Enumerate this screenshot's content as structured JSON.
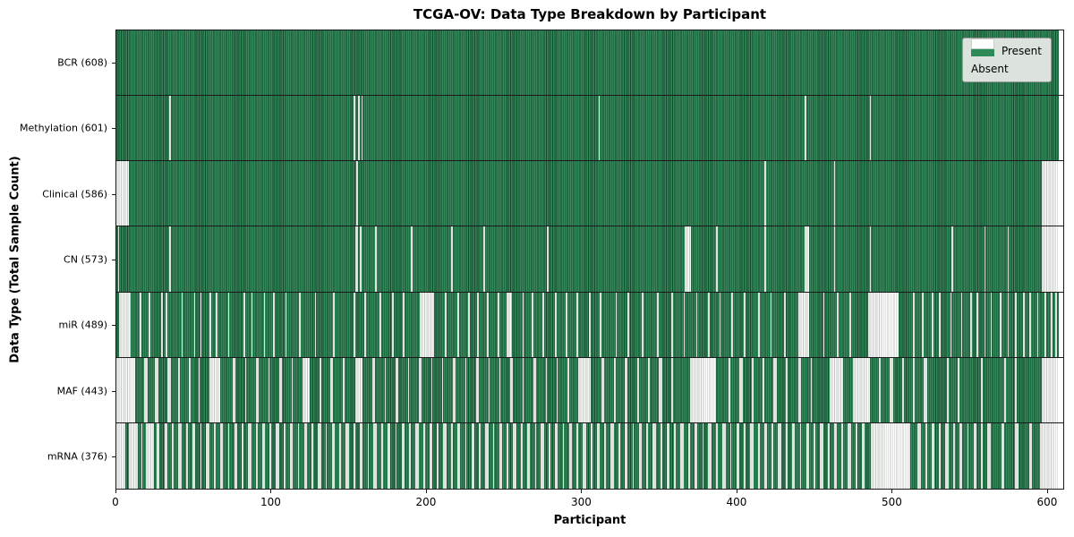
{
  "chart_data": {
    "type": "heatmap",
    "title": "TCGA-OV: Data Type Breakdown by Participant",
    "xlabel": "Participant",
    "ylabel": "Data Type (Total Sample Count)",
    "x_domain": [
      0,
      611
    ],
    "x_ticks": [
      0,
      100,
      200,
      300,
      400,
      500,
      600
    ],
    "n_participants": 608,
    "grid": false,
    "legend_position": "upper-right",
    "legend": [
      {
        "label": "Present",
        "color": "#2e8b57"
      },
      {
        "label": "Absent",
        "color": "#ffffff"
      }
    ],
    "colors": {
      "present_fill": "#34895b",
      "present_edge": "#16472d",
      "absent_fill": "#fcfcfc",
      "absent_edge": "#c3c7c3",
      "legend_bg": "#dce3dd"
    },
    "rows": [
      {
        "name": "bcr",
        "label": "BCR (608)",
        "present_count": 608,
        "absent_ranges": []
      },
      {
        "name": "methylation",
        "label": "Methylation (601)",
        "present_count": 601,
        "absent_ranges": [
          [
            34,
            34
          ],
          [
            153,
            153
          ],
          [
            156,
            156
          ],
          [
            158,
            158
          ],
          [
            311,
            311
          ],
          [
            444,
            444
          ],
          [
            486,
            486
          ]
        ]
      },
      {
        "name": "clinical",
        "label": "Clinical (586)",
        "present_count": 586,
        "absent_ranges": [
          [
            0,
            7
          ],
          [
            155,
            155
          ],
          [
            418,
            418
          ],
          [
            463,
            463
          ],
          [
            597,
            607
          ]
        ]
      },
      {
        "name": "cn",
        "label": "CN (573)",
        "present_count": 573,
        "absent_ranges": [
          [
            1,
            1
          ],
          [
            34,
            34
          ],
          [
            154,
            155
          ],
          [
            157,
            157
          ],
          [
            167,
            167
          ],
          [
            190,
            190
          ],
          [
            216,
            216
          ],
          [
            237,
            237
          ],
          [
            278,
            278
          ],
          [
            367,
            370
          ],
          [
            387,
            387
          ],
          [
            418,
            418
          ],
          [
            444,
            446
          ],
          [
            463,
            463
          ],
          [
            486,
            486
          ],
          [
            539,
            539
          ],
          [
            560,
            560
          ],
          [
            575,
            575
          ],
          [
            597,
            607
          ]
        ]
      },
      {
        "name": "mir",
        "label": "miR (489)",
        "present_count": 489,
        "absent_ranges": [
          [
            2,
            8
          ],
          [
            15,
            15
          ],
          [
            21,
            21
          ],
          [
            29,
            29
          ],
          [
            32,
            32
          ],
          [
            42,
            42
          ],
          [
            50,
            50
          ],
          [
            54,
            54
          ],
          [
            60,
            60
          ],
          [
            64,
            64
          ],
          [
            72,
            72
          ],
          [
            82,
            82
          ],
          [
            87,
            87
          ],
          [
            95,
            95
          ],
          [
            101,
            101
          ],
          [
            109,
            109
          ],
          [
            118,
            118
          ],
          [
            128,
            128
          ],
          [
            140,
            140
          ],
          [
            153,
            153
          ],
          [
            160,
            160
          ],
          [
            170,
            170
          ],
          [
            178,
            178
          ],
          [
            185,
            185
          ],
          [
            196,
            204
          ],
          [
            212,
            212
          ],
          [
            220,
            220
          ],
          [
            227,
            227
          ],
          [
            233,
            233
          ],
          [
            239,
            239
          ],
          [
            246,
            246
          ],
          [
            252,
            254
          ],
          [
            262,
            262
          ],
          [
            268,
            268
          ],
          [
            275,
            275
          ],
          [
            283,
            283
          ],
          [
            290,
            290
          ],
          [
            297,
            297
          ],
          [
            305,
            305
          ],
          [
            312,
            312
          ],
          [
            322,
            322
          ],
          [
            330,
            330
          ],
          [
            339,
            339
          ],
          [
            349,
            349
          ],
          [
            358,
            358
          ],
          [
            366,
            366
          ],
          [
            374,
            374
          ],
          [
            382,
            382
          ],
          [
            389,
            389
          ],
          [
            397,
            397
          ],
          [
            405,
            405
          ],
          [
            414,
            414
          ],
          [
            422,
            422
          ],
          [
            431,
            431
          ],
          [
            440,
            446
          ],
          [
            456,
            456
          ],
          [
            465,
            465
          ],
          [
            473,
            473
          ],
          [
            485,
            504
          ],
          [
            514,
            514
          ],
          [
            520,
            520
          ],
          [
            526,
            526
          ],
          [
            531,
            531
          ],
          [
            538,
            538
          ],
          [
            545,
            545
          ],
          [
            551,
            551
          ],
          [
            555,
            555
          ],
          [
            560,
            560
          ],
          [
            564,
            564
          ],
          [
            570,
            570
          ],
          [
            575,
            575
          ],
          [
            580,
            580
          ],
          [
            585,
            585
          ],
          [
            589,
            589
          ],
          [
            594,
            594
          ],
          [
            599,
            599
          ],
          [
            603,
            603
          ],
          [
            606,
            606
          ]
        ]
      },
      {
        "name": "maf",
        "label": "MAF (443)",
        "present_count": 443,
        "absent_ranges": [
          [
            0,
            11
          ],
          [
            18,
            19
          ],
          [
            25,
            26
          ],
          [
            33,
            34
          ],
          [
            40,
            40
          ],
          [
            47,
            47
          ],
          [
            53,
            53
          ],
          [
            60,
            66
          ],
          [
            75,
            76
          ],
          [
            83,
            83
          ],
          [
            90,
            91
          ],
          [
            98,
            98
          ],
          [
            105,
            106
          ],
          [
            113,
            113
          ],
          [
            120,
            124
          ],
          [
            131,
            131
          ],
          [
            138,
            139
          ],
          [
            146,
            146
          ],
          [
            154,
            158
          ],
          [
            165,
            166
          ],
          [
            173,
            173
          ],
          [
            180,
            181
          ],
          [
            188,
            188
          ],
          [
            195,
            196
          ],
          [
            203,
            203
          ],
          [
            210,
            210
          ],
          [
            217,
            218
          ],
          [
            225,
            225
          ],
          [
            232,
            233
          ],
          [
            240,
            240
          ],
          [
            247,
            247
          ],
          [
            254,
            255
          ],
          [
            262,
            262
          ],
          [
            269,
            270
          ],
          [
            277,
            277
          ],
          [
            284,
            284
          ],
          [
            291,
            291
          ],
          [
            298,
            305
          ],
          [
            313,
            314
          ],
          [
            321,
            321
          ],
          [
            328,
            329
          ],
          [
            336,
            336
          ],
          [
            343,
            343
          ],
          [
            350,
            351
          ],
          [
            358,
            358
          ],
          [
            370,
            386
          ],
          [
            395,
            395
          ],
          [
            402,
            403
          ],
          [
            410,
            410
          ],
          [
            417,
            417
          ],
          [
            424,
            425
          ],
          [
            432,
            432
          ],
          [
            440,
            441
          ],
          [
            448,
            448
          ],
          [
            460,
            468
          ],
          [
            475,
            485
          ],
          [
            492,
            492
          ],
          [
            499,
            500
          ],
          [
            507,
            507
          ],
          [
            514,
            514
          ],
          [
            521,
            522
          ],
          [
            536,
            536
          ],
          [
            543,
            543
          ],
          [
            558,
            558
          ],
          [
            573,
            573
          ],
          [
            580,
            580
          ],
          [
            597,
            607
          ]
        ]
      },
      {
        "name": "mrna",
        "label": "mRNA (376)",
        "present_count": 376,
        "absent_ranges": [
          [
            0,
            5
          ],
          [
            8,
            13
          ],
          [
            16,
            16
          ],
          [
            19,
            23
          ],
          [
            26,
            27
          ],
          [
            31,
            32
          ],
          [
            36,
            36
          ],
          [
            40,
            41
          ],
          [
            45,
            45
          ],
          [
            49,
            50
          ],
          [
            54,
            54
          ],
          [
            58,
            59
          ],
          [
            63,
            63
          ],
          [
            67,
            68
          ],
          [
            72,
            72
          ],
          [
            76,
            77
          ],
          [
            81,
            81
          ],
          [
            85,
            86
          ],
          [
            90,
            90
          ],
          [
            94,
            95
          ],
          [
            99,
            99
          ],
          [
            103,
            104
          ],
          [
            108,
            108
          ],
          [
            112,
            113
          ],
          [
            117,
            117
          ],
          [
            121,
            122
          ],
          [
            126,
            126
          ],
          [
            130,
            131
          ],
          [
            135,
            135
          ],
          [
            139,
            140
          ],
          [
            144,
            144
          ],
          [
            148,
            149
          ],
          [
            153,
            153
          ],
          [
            157,
            158
          ],
          [
            162,
            162
          ],
          [
            166,
            167
          ],
          [
            171,
            171
          ],
          [
            175,
            176
          ],
          [
            180,
            180
          ],
          [
            184,
            185
          ],
          [
            189,
            189
          ],
          [
            193,
            194
          ],
          [
            198,
            198
          ],
          [
            202,
            203
          ],
          [
            207,
            207
          ],
          [
            211,
            212
          ],
          [
            216,
            216
          ],
          [
            220,
            221
          ],
          [
            225,
            225
          ],
          [
            229,
            230
          ],
          [
            234,
            234
          ],
          [
            238,
            239
          ],
          [
            243,
            243
          ],
          [
            247,
            248
          ],
          [
            252,
            252
          ],
          [
            256,
            257
          ],
          [
            261,
            261
          ],
          [
            265,
            266
          ],
          [
            270,
            270
          ],
          [
            274,
            275
          ],
          [
            279,
            279
          ],
          [
            283,
            284
          ],
          [
            288,
            288
          ],
          [
            292,
            293
          ],
          [
            297,
            297
          ],
          [
            301,
            302
          ],
          [
            306,
            306
          ],
          [
            310,
            311
          ],
          [
            315,
            315
          ],
          [
            319,
            320
          ],
          [
            324,
            324
          ],
          [
            328,
            329
          ],
          [
            333,
            333
          ],
          [
            337,
            338
          ],
          [
            342,
            342
          ],
          [
            346,
            347
          ],
          [
            351,
            351
          ],
          [
            355,
            356
          ],
          [
            360,
            360
          ],
          [
            364,
            365
          ],
          [
            369,
            369
          ],
          [
            373,
            374
          ],
          [
            378,
            378
          ],
          [
            382,
            383
          ],
          [
            387,
            387
          ],
          [
            391,
            392
          ],
          [
            396,
            396
          ],
          [
            400,
            401
          ],
          [
            405,
            405
          ],
          [
            409,
            410
          ],
          [
            414,
            414
          ],
          [
            418,
            419
          ],
          [
            423,
            423
          ],
          [
            427,
            428
          ],
          [
            432,
            432
          ],
          [
            436,
            437
          ],
          [
            441,
            441
          ],
          [
            445,
            446
          ],
          [
            450,
            450
          ],
          [
            454,
            455
          ],
          [
            459,
            459
          ],
          [
            463,
            464
          ],
          [
            468,
            468
          ],
          [
            472,
            473
          ],
          [
            477,
            477
          ],
          [
            481,
            482
          ],
          [
            487,
            511
          ],
          [
            517,
            518
          ],
          [
            522,
            522
          ],
          [
            526,
            527
          ],
          [
            531,
            531
          ],
          [
            535,
            536
          ],
          [
            540,
            540
          ],
          [
            544,
            545
          ],
          [
            549,
            549
          ],
          [
            553,
            554
          ],
          [
            558,
            558
          ],
          [
            562,
            563
          ],
          [
            571,
            572
          ],
          [
            580,
            581
          ],
          [
            589,
            590
          ],
          [
            596,
            607
          ]
        ]
      }
    ]
  }
}
